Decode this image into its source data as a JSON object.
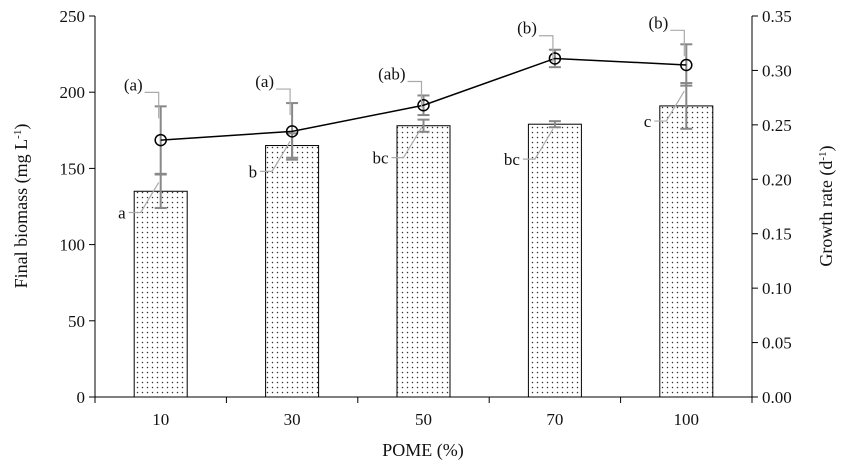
{
  "chart_data": {
    "type": "bar",
    "categories": [
      "10",
      "30",
      "50",
      "70",
      "100"
    ],
    "xlabel": "POME (%)",
    "ylabel_left": {
      "main": "Final biomass (mg L",
      "sup": "-1",
      "close": ")"
    },
    "ylabel_right": {
      "main": "Growth rate (d",
      "sup": "-1",
      "close": ")"
    },
    "ylim_left": [
      0,
      250
    ],
    "ylim_right": [
      0,
      0.35
    ],
    "yticks_left": [
      "0",
      "50",
      "100",
      "150",
      "200",
      "250"
    ],
    "yticks_right": [
      "0.00",
      "0.05",
      "0.10",
      "0.15",
      "0.20",
      "0.25",
      "0.30",
      "0.35"
    ],
    "grid": false,
    "series": [
      {
        "type": "bar",
        "axis": "left",
        "values": [
          135,
          165,
          178,
          179,
          191
        ],
        "errors": [
          11,
          8,
          4,
          2,
          15
        ],
        "labels": [
          "a",
          "b",
          "bc",
          "bc",
          "c"
        ]
      },
      {
        "type": "line",
        "axis": "right",
        "values": [
          0.236,
          0.244,
          0.268,
          0.311,
          0.305
        ],
        "errors": [
          0.031,
          0.026,
          0.009,
          0.008,
          0.019
        ],
        "labels": [
          "(a)",
          "(a)",
          "(ab)",
          "(b)",
          "(b)"
        ]
      }
    ],
    "colors": {
      "bar_fill": "#ffffff",
      "bar_dots": "#333333",
      "axis": "#000000",
      "line": "#000000",
      "error": "#888888",
      "leader": "#aaaaaa"
    }
  }
}
